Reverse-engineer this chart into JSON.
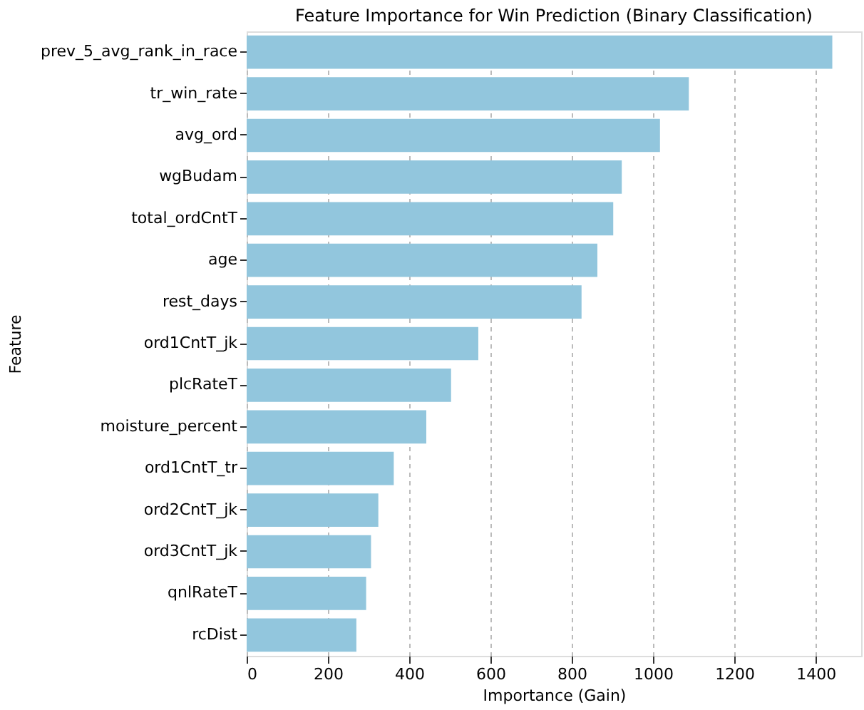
{
  "chart_data": {
    "type": "bar",
    "orientation": "horizontal",
    "title": "Feature Importance for Win Prediction (Binary Classification)",
    "xlabel": "Importance (Gain)",
    "ylabel": "Feature",
    "categories": [
      "prev_5_avg_rank_in_race",
      "tr_win_rate",
      "avg_ord",
      "wgBudam",
      "total_ordCntT",
      "age",
      "rest_days",
      "ord1CntT_jk",
      "plcRateT",
      "moisture_percent",
      "ord1CntT_tr",
      "ord2CntT_jk",
      "ord3CntT_jk",
      "qnlRateT",
      "rcDist"
    ],
    "values": [
      1441,
      1088,
      1017,
      923,
      902,
      863,
      824,
      570,
      503,
      442,
      362,
      324,
      306,
      294,
      270
    ],
    "color": "#92c6dd",
    "xlim": [
      0,
      1512
    ],
    "xticks": [
      0,
      200,
      400,
      600,
      800,
      1000,
      1200,
      1400
    ],
    "grid": "x"
  }
}
